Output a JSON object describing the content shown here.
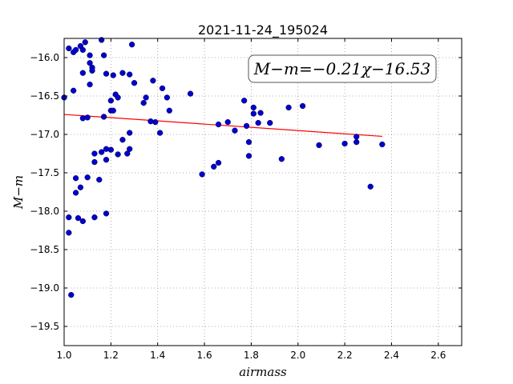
{
  "chart_data": {
    "type": "scatter",
    "title": "2021-11-24_195024",
    "xlabel": "airmass",
    "ylabel": "M−m",
    "annotation": "M−m=−0.21χ−16.53",
    "xlim": [
      1.0,
      2.7
    ],
    "ylim": [
      -15.75,
      -19.75
    ],
    "y_inverted": true,
    "grid": true,
    "x_ticks": [
      "1.0",
      "1.2",
      "1.4",
      "1.6",
      "1.8",
      "2.0",
      "2.2",
      "2.4",
      "2.6"
    ],
    "y_ticks": [
      "−16.0",
      "−16.5",
      "−17.0",
      "−17.5",
      "−18.0",
      "−18.5",
      "−19.0",
      "−19.5"
    ],
    "colors": {
      "points": "#0000cc",
      "fit": "#ff0000",
      "grid": "#999999"
    },
    "fit": {
      "slope": -0.21,
      "intercept": -16.53,
      "x_range": [
        1.0,
        2.36
      ]
    },
    "points": [
      [
        1.0,
        -16.52
      ],
      [
        1.02,
        -15.88
      ],
      [
        1.02,
        -18.08
      ],
      [
        1.02,
        -18.28
      ],
      [
        1.03,
        -19.09
      ],
      [
        1.04,
        -15.93
      ],
      [
        1.04,
        -16.43
      ],
      [
        1.05,
        -15.9
      ],
      [
        1.05,
        -17.57
      ],
      [
        1.05,
        -17.76
      ],
      [
        1.06,
        -18.09
      ],
      [
        1.07,
        -15.85
      ],
      [
        1.07,
        -17.69
      ],
      [
        1.08,
        -15.9
      ],
      [
        1.08,
        -16.2
      ],
      [
        1.08,
        -16.79
      ],
      [
        1.08,
        -18.13
      ],
      [
        1.09,
        -15.8
      ],
      [
        1.1,
        -17.56
      ],
      [
        1.1,
        -16.78
      ],
      [
        1.11,
        -16.35
      ],
      [
        1.11,
        -15.97
      ],
      [
        1.11,
        -16.07
      ],
      [
        1.12,
        -16.13
      ],
      [
        1.12,
        -16.17
      ],
      [
        1.13,
        -17.36
      ],
      [
        1.13,
        -17.25
      ],
      [
        1.13,
        -18.08
      ],
      [
        1.15,
        -17.59
      ],
      [
        1.16,
        -17.23
      ],
      [
        1.16,
        -15.77
      ],
      [
        1.17,
        -15.97
      ],
      [
        1.17,
        -16.77
      ],
      [
        1.18,
        -16.21
      ],
      [
        1.18,
        -17.19
      ],
      [
        1.18,
        -17.33
      ],
      [
        1.18,
        -18.03
      ],
      [
        1.2,
        -16.56
      ],
      [
        1.2,
        -16.69
      ],
      [
        1.2,
        -17.2
      ],
      [
        1.21,
        -16.23
      ],
      [
        1.21,
        -16.69
      ],
      [
        1.22,
        -16.48
      ],
      [
        1.23,
        -16.52
      ],
      [
        1.23,
        -17.26
      ],
      [
        1.25,
        -16.2
      ],
      [
        1.25,
        -17.07
      ],
      [
        1.27,
        -17.25
      ],
      [
        1.28,
        -16.98
      ],
      [
        1.28,
        -17.19
      ],
      [
        1.28,
        -16.22
      ],
      [
        1.29,
        -15.83
      ],
      [
        1.3,
        -16.33
      ],
      [
        1.34,
        -16.59
      ],
      [
        1.35,
        -16.52
      ],
      [
        1.37,
        -16.83
      ],
      [
        1.38,
        -16.3
      ],
      [
        1.39,
        -16.84
      ],
      [
        1.41,
        -16.98
      ],
      [
        1.42,
        -16.4
      ],
      [
        1.44,
        -16.52
      ],
      [
        1.45,
        -16.69
      ],
      [
        1.54,
        -16.47
      ],
      [
        1.59,
        -17.52
      ],
      [
        1.64,
        -17.42
      ],
      [
        1.66,
        -16.87
      ],
      [
        1.66,
        -17.37
      ],
      [
        1.7,
        -16.84
      ],
      [
        1.73,
        -16.95
      ],
      [
        1.77,
        -16.56
      ],
      [
        1.78,
        -16.89
      ],
      [
        1.79,
        -17.28
      ],
      [
        1.79,
        -17.1
      ],
      [
        1.81,
        -16.65
      ],
      [
        1.81,
        -16.73
      ],
      [
        1.83,
        -16.85
      ],
      [
        1.84,
        -16.72
      ],
      [
        1.88,
        -16.85
      ],
      [
        1.93,
        -17.32
      ],
      [
        1.96,
        -16.65
      ],
      [
        2.02,
        -16.63
      ],
      [
        2.09,
        -17.14
      ],
      [
        2.2,
        -17.12
      ],
      [
        2.25,
        -17.03
      ],
      [
        2.25,
        -17.1
      ],
      [
        2.31,
        -17.68
      ],
      [
        2.36,
        -17.13
      ]
    ]
  }
}
